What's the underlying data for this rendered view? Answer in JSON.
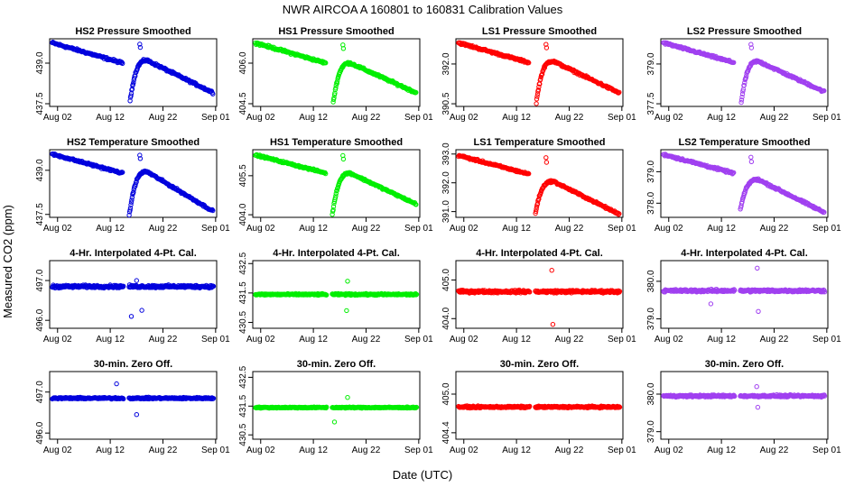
{
  "figure": {
    "title": "NWR   AIRCOA A   160801 to 160831   Calibration Values",
    "xlabel": "Date (UTC)",
    "ylabel": "Measured CO2 (ppm)"
  },
  "colors": {
    "HS2": "#0000dd",
    "HS1": "#00ee00",
    "LS1": "#ff0000",
    "LS2": "#a040f0"
  },
  "chart_data": [
    {
      "type": "scatter",
      "title": "HS2 Pressure Smoothed",
      "series": "HS2",
      "yticks": [
        437.5,
        439.0
      ],
      "ylim": [
        437.4,
        439.9
      ],
      "mode": "drift",
      "start": 439.75,
      "gapEnd": 439.0,
      "low": 437.35,
      "peak": 439.1,
      "end": 437.9,
      "noise": 0.06
    },
    {
      "type": "scatter",
      "title": "HS1 Pressure Smoothed",
      "series": "HS1",
      "yticks": [
        404.5,
        406.0
      ],
      "ylim": [
        404.4,
        406.9
      ],
      "mode": "drift",
      "start": 406.75,
      "gapEnd": 406.0,
      "low": 404.3,
      "peak": 406.0,
      "end": 404.9,
      "noise": 0.06
    },
    {
      "type": "scatter",
      "title": "LS1 Pressure Smoothed",
      "series": "LS1",
      "yticks": [
        390.5,
        392.0
      ],
      "ylim": [
        390.4,
        392.95
      ],
      "mode": "drift",
      "start": 392.8,
      "gapEnd": 392.05,
      "low": 390.3,
      "peak": 392.1,
      "end": 390.9,
      "noise": 0.06
    },
    {
      "type": "scatter",
      "title": "LS2 Pressure Smoothed",
      "series": "LS2",
      "yticks": [
        377.5,
        379.0
      ],
      "ylim": [
        377.4,
        379.95
      ],
      "mode": "drift",
      "start": 379.8,
      "gapEnd": 379.05,
      "low": 377.3,
      "peak": 379.1,
      "end": 377.95,
      "noise": 0.06
    },
    {
      "type": "scatter",
      "title": "HS2 Temperature Smoothed",
      "series": "HS2",
      "yticks": [
        437.5,
        439.0
      ],
      "ylim": [
        437.4,
        439.7
      ],
      "mode": "drift",
      "start": 439.55,
      "gapEnd": 438.9,
      "low": 437.45,
      "peak": 438.95,
      "end": 437.6,
      "noise": 0.05
    },
    {
      "type": "scatter",
      "title": "HS1 Temperature Smoothed",
      "series": "HS1",
      "yticks": [
        404.0,
        405.5
      ],
      "ylim": [
        403.9,
        406.5
      ],
      "mode": "drift",
      "start": 406.3,
      "gapEnd": 405.6,
      "low": 404.0,
      "peak": 405.6,
      "end": 404.4,
      "noise": 0.05
    },
    {
      "type": "scatter",
      "title": "LS1 Temperature Smoothed",
      "series": "LS1",
      "yticks": [
        391.0,
        392.0,
        393.0
      ],
      "ylim": [
        390.8,
        393.15
      ],
      "mode": "drift",
      "start": 392.95,
      "gapEnd": 392.3,
      "low": 390.95,
      "peak": 392.05,
      "end": 390.9,
      "noise": 0.05
    },
    {
      "type": "scatter",
      "title": "LS2 Temperature Smoothed",
      "series": "LS2",
      "yticks": [
        378.0,
        379.0
      ],
      "ylim": [
        377.55,
        379.7
      ],
      "mode": "drift",
      "start": 379.55,
      "gapEnd": 378.95,
      "low": 377.8,
      "peak": 378.75,
      "end": 377.7,
      "noise": 0.05
    },
    {
      "type": "scatter",
      "title": "4-Hr. Interpolated 4-Pt. Cal.",
      "series": "HS2",
      "yticks": [
        496.0,
        497.0
      ],
      "ylim": [
        495.8,
        497.5
      ],
      "mode": "flat",
      "level": 496.85,
      "noise": 0.05,
      "outliers": [
        [
          16.0,
          496.1
        ],
        [
          18.0,
          496.25
        ],
        [
          17.0,
          497.0
        ]
      ]
    },
    {
      "type": "scatter",
      "title": "4-Hr. Interpolated 4-Pt. Cal.",
      "series": "HS1",
      "yticks": [
        430.5,
        431.5,
        432.5
      ],
      "ylim": [
        430.3,
        432.6
      ],
      "mode": "flat",
      "level": 431.45,
      "noise": 0.04,
      "outliers": [
        [
          18.3,
          430.9
        ],
        [
          18.5,
          431.9
        ]
      ]
    },
    {
      "type": "scatter",
      "title": "4-Hr. Interpolated 4-Pt. Cal.",
      "series": "LS1",
      "yticks": [
        404.0,
        405.0
      ],
      "ylim": [
        403.75,
        405.5
      ],
      "mode": "flat",
      "level": 404.7,
      "noise": 0.05,
      "outliers": [
        [
          18.7,
          405.25
        ],
        [
          18.9,
          403.85
        ]
      ]
    },
    {
      "type": "scatter",
      "title": "4-Hr. Interpolated 4-Pt. Cal.",
      "series": "LS2",
      "yticks": [
        379.0,
        380.0
      ],
      "ylim": [
        378.75,
        380.55
      ],
      "mode": "flat",
      "level": 379.75,
      "noise": 0.05,
      "outliers": [
        [
          18.8,
          380.35
        ],
        [
          19.0,
          379.2
        ],
        [
          10.0,
          379.4
        ]
      ]
    },
    {
      "type": "scatter",
      "title": "30-min. Zero Off.",
      "series": "HS2",
      "yticks": [
        496.0,
        497.0
      ],
      "ylim": [
        495.85,
        497.5
      ],
      "mode": "flat",
      "level": 496.85,
      "noise": 0.03,
      "outliers": [
        [
          13.2,
          497.2
        ],
        [
          17.0,
          496.45
        ]
      ]
    },
    {
      "type": "scatter",
      "title": "30-min. Zero Off.",
      "series": "HS1",
      "yticks": [
        430.5,
        431.5,
        432.5
      ],
      "ylim": [
        430.35,
        432.7
      ],
      "mode": "flat",
      "level": 431.45,
      "noise": 0.03,
      "outliers": [
        [
          16.0,
          430.95
        ],
        [
          18.5,
          431.8
        ]
      ]
    },
    {
      "type": "scatter",
      "title": "30-min. Zero Off.",
      "series": "LS1",
      "yticks": [
        404.4,
        405.0
      ],
      "ylim": [
        404.3,
        405.35
      ],
      "mode": "flat",
      "level": 404.8,
      "noise": 0.02,
      "outliers": []
    },
    {
      "type": "scatter",
      "title": "30-min. Zero Off.",
      "series": "LS2",
      "yticks": [
        379.0,
        380.0
      ],
      "ylim": [
        378.8,
        380.6
      ],
      "mode": "flat",
      "level": 379.95,
      "noise": 0.04,
      "outliers": [
        [
          18.7,
          380.2
        ],
        [
          18.9,
          379.65
        ]
      ]
    }
  ],
  "xaxis": {
    "ticks": [
      2,
      12,
      22,
      32
    ],
    "tick_labels": [
      "Aug 02",
      "Aug 12",
      "Aug 22",
      "Sep 01"
    ],
    "xlim": [
      0.5,
      32.2
    ],
    "gap": [
      14.5,
      15.5
    ]
  }
}
